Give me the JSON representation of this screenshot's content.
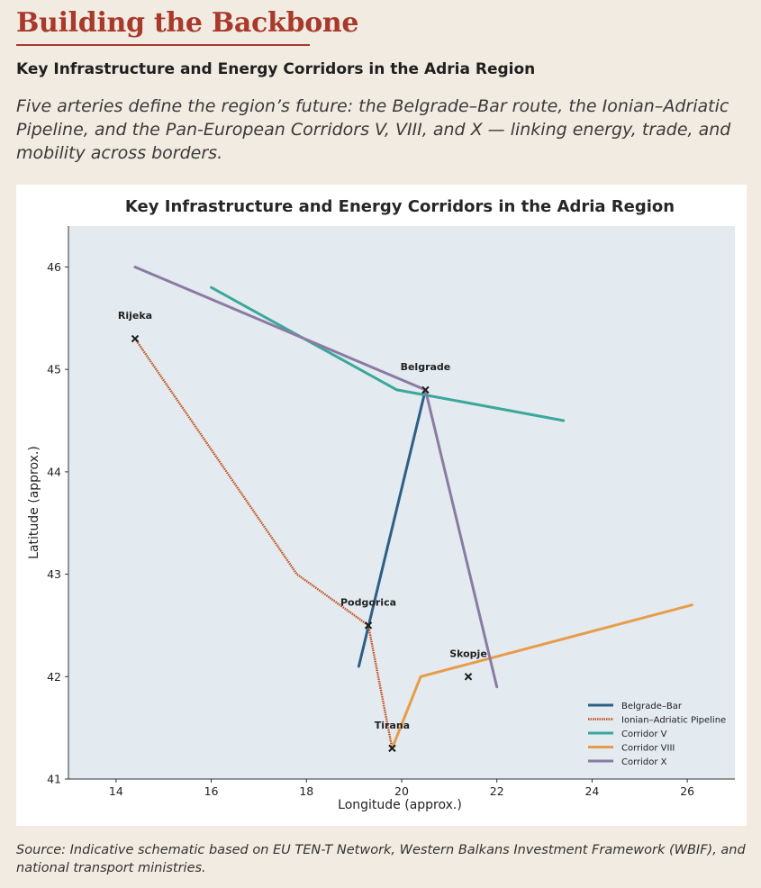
{
  "header": {
    "headline": "Building the Backbone",
    "subtitle": "Key Infrastructure and Energy Corridors in the Adria Region",
    "dek": "Five arteries define the region’s future: the Belgrade–Bar route, the Ionian–Adriatic Pipeline, and the Pan-European Corridors V, VIII, and X — linking energy, trade, and mobility across borders."
  },
  "source": "Source: Indicative schematic based on EU TEN-T Network, Western Balkans Investment Framework (WBIF), and national transport ministries.",
  "colors": {
    "accent": "#a8392b",
    "page_bg": "#f1ebe1",
    "plot_bg": "#e3eaf0"
  },
  "chart_data": {
    "type": "line",
    "title": "Key Infrastructure and Energy Corridors in the Adria Region",
    "xlabel": "Longitude (approx.)",
    "ylabel": "Latitude (approx.)",
    "xlim": [
      13,
      27
    ],
    "ylim": [
      41,
      46.4
    ],
    "xticks": [
      14,
      16,
      18,
      20,
      22,
      24,
      26
    ],
    "yticks": [
      41,
      42,
      43,
      44,
      45,
      46
    ],
    "grid": false,
    "legend_position": "lower-right",
    "series": [
      {
        "name": "Belgrade–Bar",
        "color": "#2e5f87",
        "style": "solid",
        "x": [
          20.5,
          19.1
        ],
        "y": [
          44.8,
          42.1
        ]
      },
      {
        "name": "Ionian–Adriatic Pipeline",
        "color": "#c24e1c",
        "style": "dotted",
        "x": [
          14.4,
          17.8,
          19.3,
          19.8
        ],
        "y": [
          45.3,
          43.0,
          42.5,
          41.3
        ]
      },
      {
        "name": "Corridor V",
        "color": "#3aa89a",
        "style": "solid",
        "x": [
          16.0,
          19.9,
          20.5,
          23.4
        ],
        "y": [
          45.8,
          44.8,
          44.75,
          44.5
        ]
      },
      {
        "name": "Corridor VIII",
        "color": "#e89c47",
        "style": "solid",
        "x": [
          19.8,
          20.4,
          26.1
        ],
        "y": [
          41.3,
          42.0,
          42.7
        ]
      },
      {
        "name": "Corridor X",
        "color": "#8b7ba3",
        "style": "solid",
        "x": [
          14.4,
          20.5,
          22.0
        ],
        "y": [
          46.0,
          44.8,
          41.9
        ]
      }
    ],
    "cities": [
      {
        "name": "Rijeka",
        "x": 14.4,
        "y": 45.3
      },
      {
        "name": "Belgrade",
        "x": 20.5,
        "y": 44.8
      },
      {
        "name": "Podgorica",
        "x": 19.3,
        "y": 42.5
      },
      {
        "name": "Skopje",
        "x": 21.4,
        "y": 42.0
      },
      {
        "name": "Tirana",
        "x": 19.8,
        "y": 41.3
      }
    ]
  }
}
